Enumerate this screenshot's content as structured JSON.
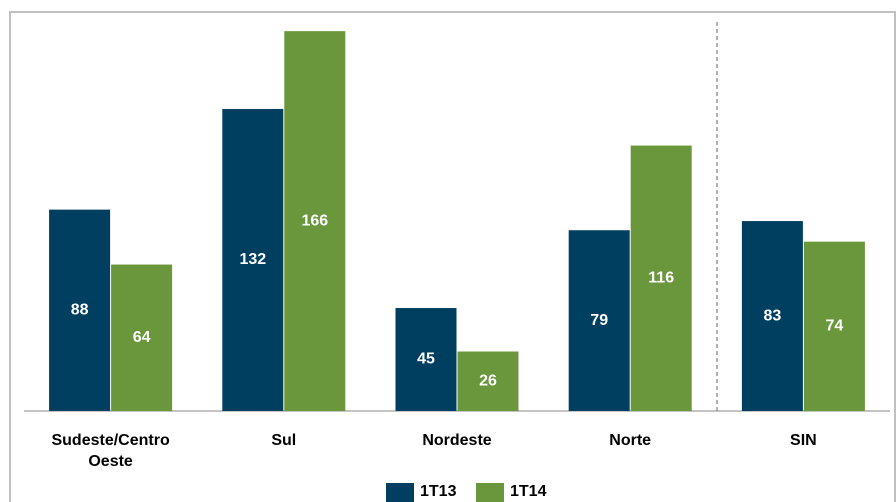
{
  "chart_data": {
    "type": "bar",
    "categories": [
      "Sudeste/Centro Oeste",
      "Sul",
      "Nordeste",
      "Norte",
      "SIN"
    ],
    "series": [
      {
        "name": "1T13",
        "color": "#003f5f",
        "values": [
          88,
          132,
          45,
          79,
          83
        ]
      },
      {
        "name": "1T14",
        "color": "#6a963c",
        "values": [
          64,
          166,
          26,
          116,
          74
        ]
      }
    ],
    "ylim": [
      0,
      170
    ],
    "legend": "bottom"
  }
}
